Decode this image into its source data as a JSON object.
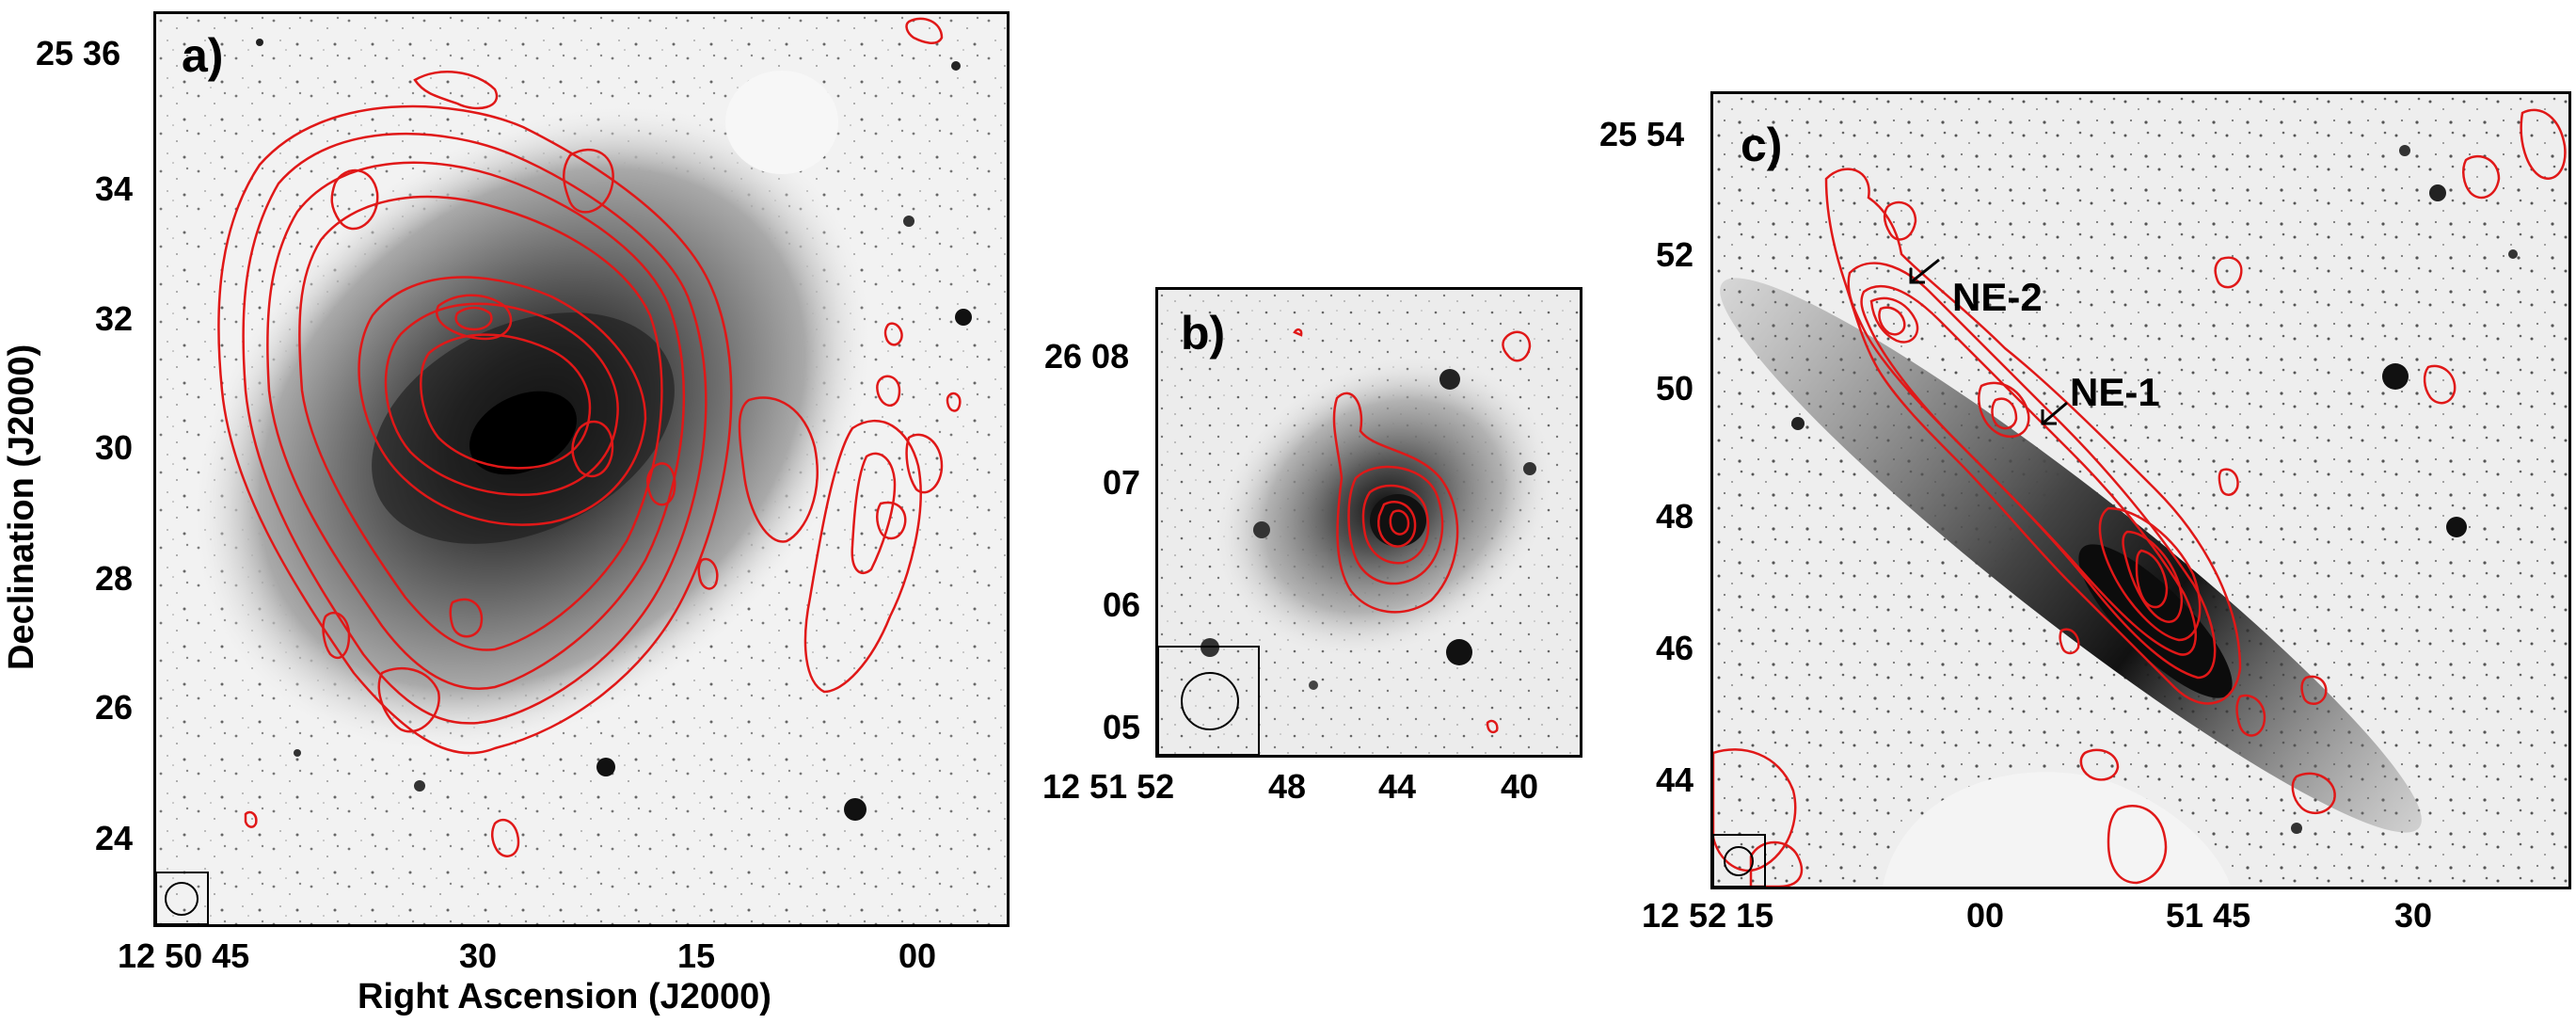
{
  "figure": {
    "panels": [
      {
        "letter": "a)",
        "y_ticks": [
          "25 36",
          "34",
          "32",
          "30",
          "28",
          "26",
          "24"
        ],
        "x_ticks": [
          "12 50 45",
          "30",
          "15",
          "00"
        ],
        "x_title": "Right Ascension (J2000)",
        "y_title": "Declination (J2000)"
      },
      {
        "letter": "b)",
        "y_ticks": [
          "26 08",
          "07",
          "06",
          "05"
        ],
        "x_ticks": [
          "12 51 52",
          "48",
          "44",
          "40"
        ]
      },
      {
        "letter": "c)",
        "y_ticks": [
          "25 54",
          "52",
          "50",
          "48",
          "46",
          "44"
        ],
        "x_ticks": [
          "12 52 15",
          "00",
          "51 45",
          "30"
        ],
        "annotations": [
          "NE-2",
          "NE-1"
        ]
      }
    ],
    "colors": {
      "contour": "#e01818",
      "frame": "#000000",
      "background": "#ffffff"
    }
  }
}
